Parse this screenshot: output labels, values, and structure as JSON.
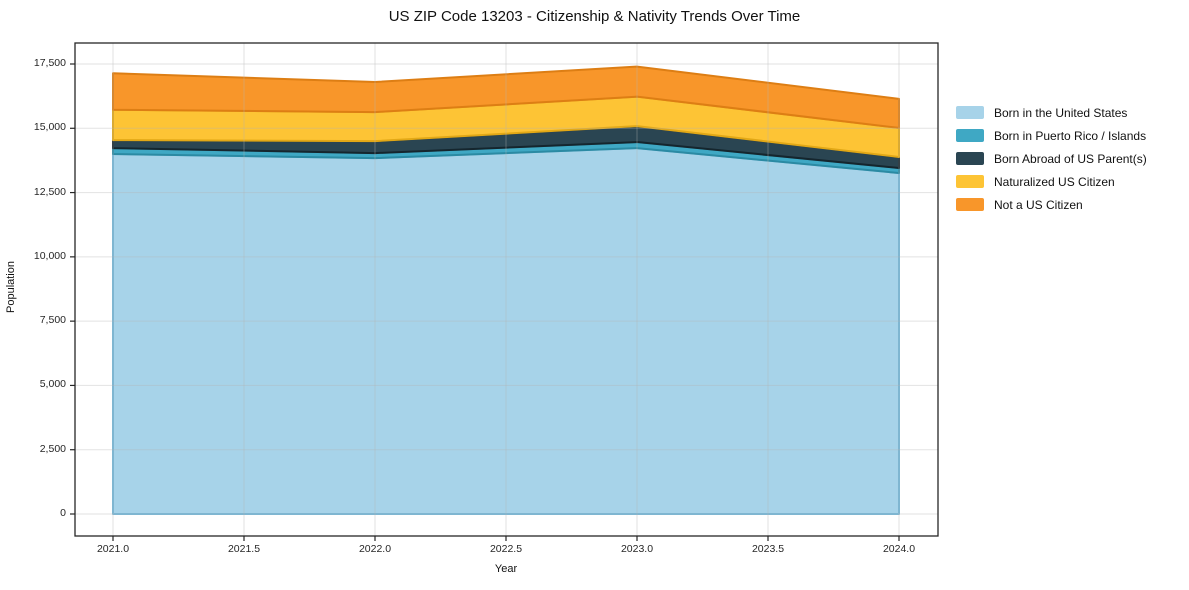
{
  "chart_data": {
    "type": "area",
    "stacked": true,
    "title": "US ZIP Code 13203 - Citizenship & Nativity Trends Over Time",
    "xlabel": "Year",
    "ylabel": "Population",
    "years": [
      2021,
      2022,
      2023,
      2024
    ],
    "series": [
      {
        "name": "Born in the United States",
        "color": "#a7d3e9",
        "edge": "#73b6d8",
        "values": [
          14000,
          13840,
          14230,
          13260
        ]
      },
      {
        "name": "Born in Puerto Rico / Islands",
        "color": "#3fa8c4",
        "edge": "#2b8aa3",
        "values": [
          230,
          195,
          235,
          195
        ]
      },
      {
        "name": "Born Abroad of US Parent(s)",
        "color": "#2a4552",
        "edge": "#15262e",
        "values": [
          310,
          465,
          620,
          430
        ]
      },
      {
        "name": "Naturalized US Citizen",
        "color": "#fdc435",
        "edge": "#e2a816",
        "values": [
          1180,
          1130,
          1145,
          1130
        ]
      },
      {
        "name": "Not a US Citizen",
        "color": "#f8962a",
        "edge": "#dd7e14",
        "values": [
          1420,
          1170,
          1170,
          1130
        ]
      }
    ],
    "totals": [
      17140,
      16800,
      17400,
      16145
    ],
    "xticks": [
      2021.0,
      2021.5,
      2022.0,
      2022.5,
      2023.0,
      2023.5,
      2024.0
    ],
    "xtick_labels": [
      "2021.0",
      "2021.5",
      "2022.0",
      "2022.5",
      "2023.0",
      "2023.5",
      "2024.0"
    ],
    "yticks": [
      0,
      2500,
      5000,
      7500,
      10000,
      12500,
      15000,
      17500
    ],
    "ytick_labels": [
      "0",
      "2,500",
      "5,000",
      "7,500",
      "10,000",
      "12,500",
      "15,000",
      "17,500"
    ],
    "xlim": [
      2020.85,
      2024.15
    ],
    "ylim": [
      0,
      17500
    ],
    "grid": true,
    "legend_position": "right"
  }
}
